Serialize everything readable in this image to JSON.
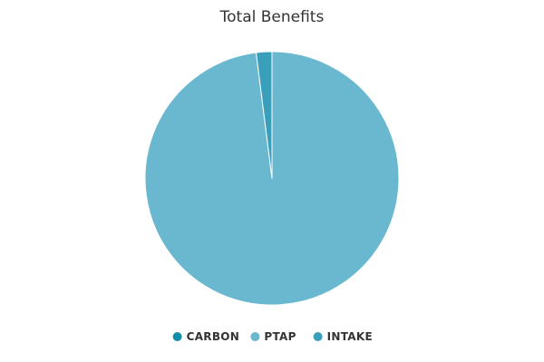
{
  "chart_data": {
    "type": "pie",
    "title": "Total Benefits",
    "slices": [
      {
        "label": "CARBON",
        "value": 0.0,
        "color": "#0f8fa8"
      },
      {
        "label": "PTAP",
        "value": 98.0,
        "color": "#6ab8d0"
      },
      {
        "label": "INTAKE",
        "value": 2.0,
        "color": "#3a9fbb"
      }
    ],
    "legend_position": "bottom"
  }
}
